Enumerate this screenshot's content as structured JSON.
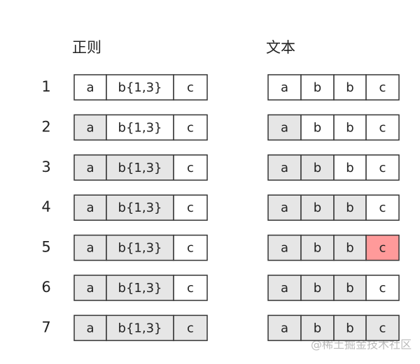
{
  "header": {
    "regex": "正则",
    "text": "文本"
  },
  "states": {
    "plain": "#ffffff",
    "shaded": "#e6e6e6",
    "mismatch": "#ff9a9a"
  },
  "rows": [
    {
      "label": "1",
      "regex": [
        {
          "text": "a",
          "state": "plain"
        },
        {
          "text": "b{1,3}",
          "state": "plain"
        },
        {
          "text": "c",
          "state": "plain"
        }
      ],
      "text": [
        {
          "text": "a",
          "state": "plain"
        },
        {
          "text": "b",
          "state": "plain"
        },
        {
          "text": "b",
          "state": "plain"
        },
        {
          "text": "c",
          "state": "plain"
        }
      ]
    },
    {
      "label": "2",
      "regex": [
        {
          "text": "a",
          "state": "shaded"
        },
        {
          "text": "b{1,3}",
          "state": "plain"
        },
        {
          "text": "c",
          "state": "plain"
        }
      ],
      "text": [
        {
          "text": "a",
          "state": "shaded"
        },
        {
          "text": "b",
          "state": "plain"
        },
        {
          "text": "b",
          "state": "plain"
        },
        {
          "text": "c",
          "state": "plain"
        }
      ]
    },
    {
      "label": "3",
      "regex": [
        {
          "text": "a",
          "state": "shaded"
        },
        {
          "text": "b{1,3}",
          "state": "shaded"
        },
        {
          "text": "c",
          "state": "plain"
        }
      ],
      "text": [
        {
          "text": "a",
          "state": "shaded"
        },
        {
          "text": "b",
          "state": "shaded"
        },
        {
          "text": "b",
          "state": "plain"
        },
        {
          "text": "c",
          "state": "plain"
        }
      ]
    },
    {
      "label": "4",
      "regex": [
        {
          "text": "a",
          "state": "shaded"
        },
        {
          "text": "b{1,3}",
          "state": "shaded"
        },
        {
          "text": "c",
          "state": "plain"
        }
      ],
      "text": [
        {
          "text": "a",
          "state": "shaded"
        },
        {
          "text": "b",
          "state": "shaded"
        },
        {
          "text": "b",
          "state": "shaded"
        },
        {
          "text": "c",
          "state": "plain"
        }
      ]
    },
    {
      "label": "5",
      "regex": [
        {
          "text": "a",
          "state": "shaded"
        },
        {
          "text": "b{1,3}",
          "state": "shaded"
        },
        {
          "text": "c",
          "state": "plain"
        }
      ],
      "text": [
        {
          "text": "a",
          "state": "shaded"
        },
        {
          "text": "b",
          "state": "shaded"
        },
        {
          "text": "b",
          "state": "shaded"
        },
        {
          "text": "c",
          "state": "mismatch"
        }
      ]
    },
    {
      "label": "6",
      "regex": [
        {
          "text": "a",
          "state": "shaded"
        },
        {
          "text": "b{1,3}",
          "state": "shaded"
        },
        {
          "text": "c",
          "state": "plain"
        }
      ],
      "text": [
        {
          "text": "a",
          "state": "shaded"
        },
        {
          "text": "b",
          "state": "shaded"
        },
        {
          "text": "b",
          "state": "shaded"
        },
        {
          "text": "c",
          "state": "plain"
        }
      ]
    },
    {
      "label": "7",
      "regex": [
        {
          "text": "a",
          "state": "shaded"
        },
        {
          "text": "b{1,3}",
          "state": "shaded"
        },
        {
          "text": "c",
          "state": "shaded"
        }
      ],
      "text": [
        {
          "text": "a",
          "state": "shaded"
        },
        {
          "text": "b",
          "state": "shaded"
        },
        {
          "text": "b",
          "state": "shaded"
        },
        {
          "text": "c",
          "state": "shaded"
        }
      ]
    }
  ],
  "watermark": "@稀土掘金技术社区"
}
